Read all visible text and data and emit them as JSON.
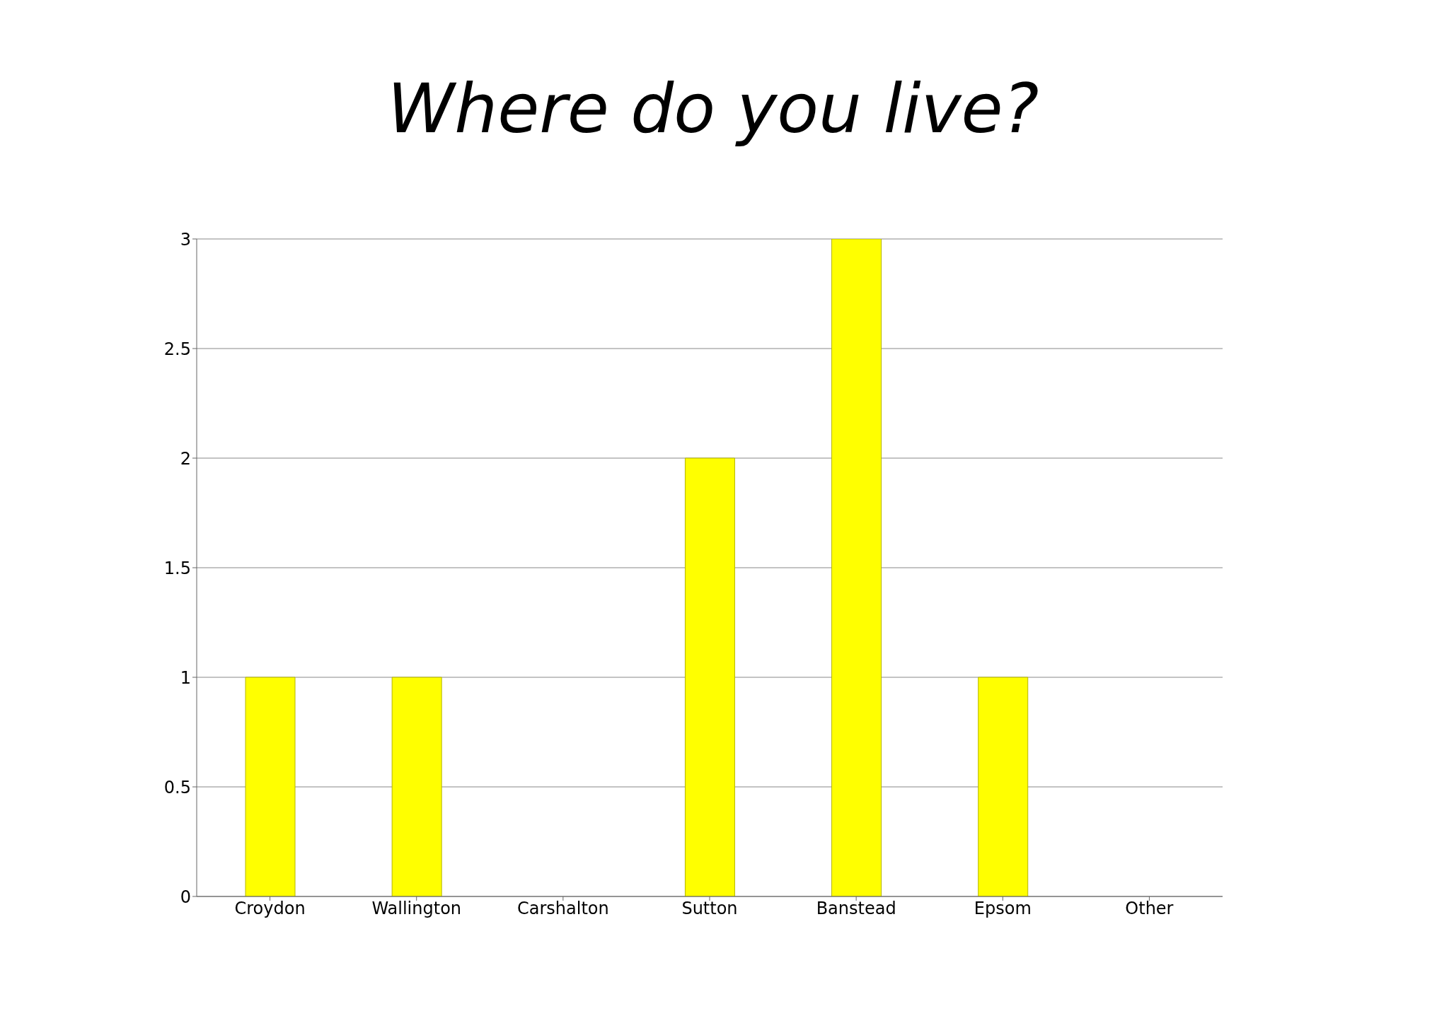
{
  "chart_data": {
    "type": "bar",
    "title": "Where  do  you  live?",
    "categories": [
      "Croydon",
      "Wallington",
      "Carshalton",
      "Sutton",
      "Banstead",
      "Epsom",
      "Other"
    ],
    "values": [
      1,
      1,
      0,
      2,
      3,
      1,
      0
    ],
    "color": "#ffff00",
    "ylim": [
      0,
      3
    ],
    "yticks": [
      0,
      0.5,
      1,
      1.5,
      2,
      2.5,
      3
    ],
    "grid": "y"
  }
}
